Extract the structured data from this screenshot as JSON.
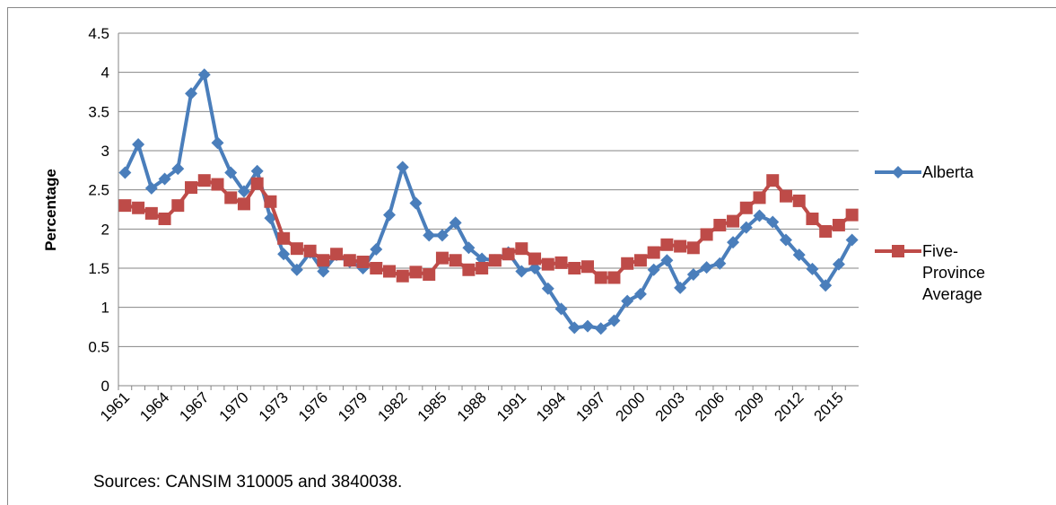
{
  "chart_data": {
    "type": "line",
    "y_label": "Percentage",
    "note": "Sources: CANSIM 310005 and 3840038.",
    "categories": [
      "1961",
      null,
      null,
      "1964",
      null,
      null,
      "1967",
      null,
      null,
      "1970",
      null,
      null,
      "1973",
      null,
      null,
      "1976",
      null,
      null,
      "1979",
      null,
      null,
      "1982",
      null,
      null,
      "1985",
      null,
      null,
      "1988",
      null,
      null,
      "1991",
      null,
      null,
      "1994",
      null,
      null,
      "1997",
      null,
      null,
      "2000",
      null,
      null,
      "2003",
      null,
      null,
      "2006",
      null,
      null,
      "2009",
      null,
      null,
      "2012",
      null,
      null,
      "2015",
      null
    ],
    "series": [
      {
        "name": "Alberta",
        "color": "#4a7ebb",
        "marker": "diamond",
        "values": [
          2.72,
          3.08,
          2.52,
          2.64,
          2.77,
          3.73,
          3.97,
          3.1,
          2.72,
          2.48,
          2.74,
          2.14,
          1.68,
          1.48,
          1.7,
          1.46,
          1.67,
          1.58,
          1.5,
          1.74,
          2.18,
          2.79,
          2.33,
          1.92,
          1.92,
          2.08,
          1.76,
          1.62,
          1.6,
          1.7,
          1.46,
          1.5,
          1.24,
          0.98,
          0.74,
          0.76,
          0.73,
          0.83,
          1.08,
          1.17,
          1.48,
          1.6,
          1.25,
          1.42,
          1.51,
          1.56,
          1.83,
          2.02,
          2.17,
          2.09,
          1.86,
          1.67,
          1.49,
          1.28,
          1.55,
          1.86
        ]
      },
      {
        "name": "Five-Province Average",
        "color": "#be4b48",
        "marker": "square",
        "values": [
          2.3,
          2.27,
          2.2,
          2.13,
          2.3,
          2.53,
          2.62,
          2.57,
          2.4,
          2.32,
          2.58,
          2.35,
          1.88,
          1.75,
          1.72,
          1.6,
          1.68,
          1.6,
          1.58,
          1.5,
          1.46,
          1.4,
          1.45,
          1.42,
          1.63,
          1.6,
          1.48,
          1.5,
          1.6,
          1.68,
          1.75,
          1.62,
          1.55,
          1.57,
          1.5,
          1.52,
          1.38,
          1.38,
          1.56,
          1.6,
          1.7,
          1.8,
          1.78,
          1.76,
          1.93,
          2.05,
          2.1,
          2.27,
          2.4,
          2.62,
          2.42,
          2.36,
          2.13,
          1.97,
          2.05,
          2.18
        ]
      }
    ],
    "ylim": [
      0,
      4.5
    ],
    "yticks": [
      0,
      0.5,
      1,
      1.5,
      2,
      2.5,
      3,
      3.5,
      4,
      4.5
    ],
    "grid": true,
    "legend": "right"
  }
}
